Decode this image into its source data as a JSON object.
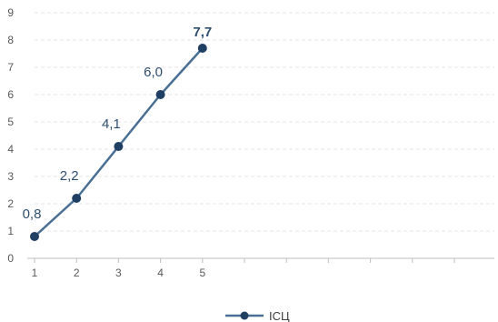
{
  "chart_data": {
    "type": "line",
    "title": "",
    "xlabel": "",
    "ylabel": "",
    "x": [
      1,
      2,
      3,
      4,
      5
    ],
    "x_tick_labels": [
      "1",
      "2",
      "3",
      "4",
      "5"
    ],
    "x_category_slots": 11,
    "ylim": [
      0,
      9
    ],
    "y_ticks": [
      "0",
      "1",
      "2",
      "3",
      "4",
      "5",
      "6",
      "7",
      "8",
      "9"
    ],
    "grid": true,
    "legend_position": "bottom",
    "series": [
      {
        "name": "ІСЦ",
        "values": [
          0.8,
          2.2,
          4.1,
          6.0,
          7.7
        ],
        "data_labels": [
          "0,8",
          "2,2",
          "4,1",
          "6,0",
          "7,7"
        ],
        "color": "#4a6f94",
        "marker_color": "#1f3f63"
      }
    ]
  }
}
